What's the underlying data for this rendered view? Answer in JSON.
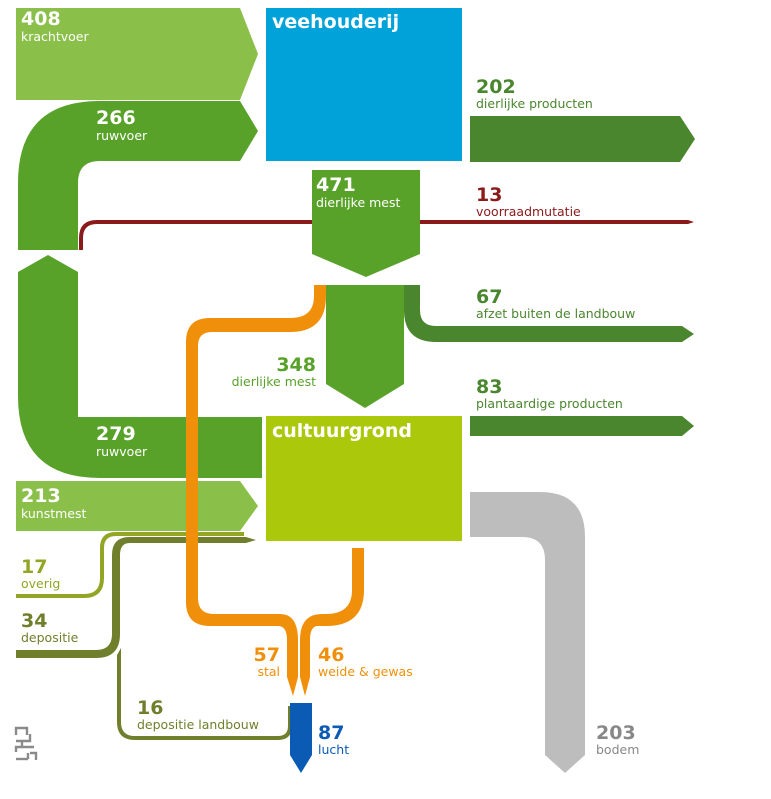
{
  "nodes": {
    "veehouderij": "veehouderij",
    "cultuurgrond": "cultuurgrond"
  },
  "flows": {
    "krachtvoer": {
      "value": "408",
      "label": "krachtvoer"
    },
    "ruwvoer_top": {
      "value": "266",
      "label": "ruwvoer"
    },
    "dierlijke_producten": {
      "value": "202",
      "label": "dierlijke producten"
    },
    "dierlijke_mest_471": {
      "value": "471",
      "label": "dierlijke mest"
    },
    "voorraadmutatie": {
      "value": "13",
      "label": "voorraadmutatie"
    },
    "afzet_buiten": {
      "value": "67",
      "label": "afzet buiten de landbouw"
    },
    "dierlijke_mest_348": {
      "value": "348",
      "label": "dierlijke mest"
    },
    "plantaardige_producten": {
      "value": "83",
      "label": "plantaardige producten"
    },
    "ruwvoer_bottom": {
      "value": "279",
      "label": "ruwvoer"
    },
    "kunstmest": {
      "value": "213",
      "label": "kunstmest"
    },
    "overig": {
      "value": "17",
      "label": "overig"
    },
    "depositie": {
      "value": "34",
      "label": "depositie"
    },
    "stal": {
      "value": "57",
      "label": "stal"
    },
    "weide_gewas": {
      "value": "46",
      "label": "weide & gewas"
    },
    "depositie_landbouw": {
      "value": "16",
      "label": "depositie landbouw"
    },
    "lucht": {
      "value": "87",
      "label": "lucht"
    },
    "bodem": {
      "value": "203",
      "label": "bodem"
    }
  },
  "colors": {
    "light_green": "#8ac04a",
    "mid_green": "#58a22a",
    "dark_green": "#4a862e",
    "olive": "#6f7f2c",
    "olive_light": "#93a524",
    "cyan": "#00a3d9",
    "lime": "#abc90a",
    "orange": "#f0900a",
    "red": "#8b1a1a",
    "grey": "#bdbdbd",
    "blue": "#0b5ab4",
    "grey_text": "#888888"
  },
  "logo": {
    "icon": "cbs-logo-icon"
  }
}
